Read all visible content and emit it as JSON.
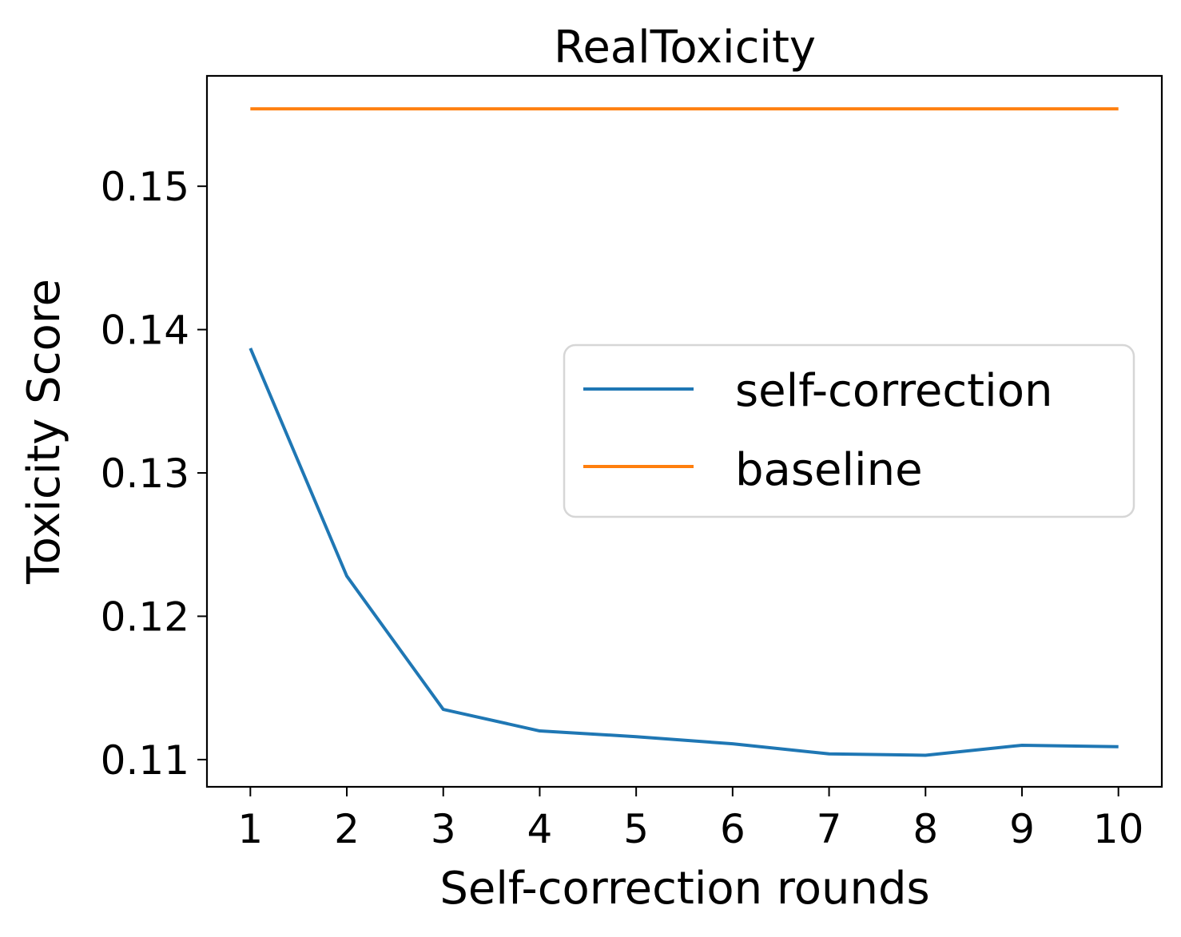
{
  "chart_data": {
    "type": "line",
    "title": "RealToxicity",
    "xlabel": "Self-correction rounds",
    "ylabel": "Toxicity Score",
    "x": [
      1,
      2,
      3,
      4,
      5,
      6,
      7,
      8,
      9,
      10
    ],
    "x_tick_labels": [
      "1",
      "2",
      "3",
      "4",
      "5",
      "6",
      "7",
      "8",
      "9",
      "10"
    ],
    "y_ticks": [
      0.11,
      0.12,
      0.13,
      0.14,
      0.15
    ],
    "y_tick_labels": [
      "0.11",
      "0.12",
      "0.13",
      "0.14",
      "0.15"
    ],
    "xlim": [
      0.55,
      10.45
    ],
    "ylim": [
      0.1081,
      0.1577
    ],
    "grid": false,
    "legend_placement": "center-right",
    "series": [
      {
        "name": "self-correction",
        "color": "#1f77b4",
        "values": [
          0.1387,
          0.1228,
          0.1135,
          0.112,
          0.1116,
          0.1111,
          0.1104,
          0.1103,
          0.111,
          0.1109
        ]
      },
      {
        "name": "baseline",
        "color": "#ff7f0e",
        "values": [
          0.1554,
          0.1554,
          0.1554,
          0.1554,
          0.1554,
          0.1554,
          0.1554,
          0.1554,
          0.1554,
          0.1554
        ]
      }
    ]
  }
}
